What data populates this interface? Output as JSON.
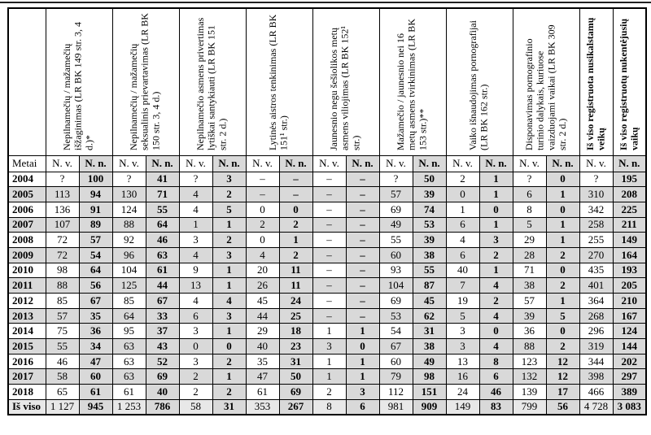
{
  "page": {
    "top_rule_color": "#222222"
  },
  "table": {
    "colors": {
      "row_shade": "#d9d9d9",
      "total_shade": "#e8e8e8",
      "border": "#000000"
    },
    "year_col_label": "Metai",
    "sub_nv": "N. v.",
    "sub_nn": "N. n.",
    "columns": [
      {
        "label": "Nepilnamečių / mažamečių išžaginimas (LR BK 149 str. 3, 4 d.)*"
      },
      {
        "label": "Nepilnamečių / mažamečių seksualinis prievartavimas (LR BK 150 str. 3, 4 d.)"
      },
      {
        "label": "Nepilnamečio asmens privertimas lytiškai santykiauti (LR BK 151 str. 2 d.)"
      },
      {
        "label": "Lytinės aistros tenkinimas (LR BK 151¹ str.)"
      },
      {
        "label": "Jaunesnio negu šešiolikos metų asmens viliojimas (LR BK 152¹ str.)"
      },
      {
        "label": "Mažamečio / jaunesnio nei 16 metų asmens tvirkinimas (LR BK 153 str.)**"
      },
      {
        "label": "Vaiko išnaudojimas pornografijai (LR BK 162 str.)"
      },
      {
        "label": "Disponavimas pornografinio turinio dalykais, kuriuose vaizduojami vaikai (LR BK 309 str. 2 d.)"
      },
      {
        "label": "Iš viso registruota nusikalstamų veikų"
      },
      {
        "label": "Iš viso registruotų nukentėjusių vaikų"
      }
    ],
    "rows": [
      {
        "year": "2004",
        "values": [
          "?",
          "100",
          "?",
          "41",
          "?",
          "3",
          "–",
          "–",
          "–",
          "–",
          "?",
          "50",
          "2",
          "1",
          "?",
          "0",
          "?",
          "195"
        ]
      },
      {
        "year": "2005",
        "values": [
          "113",
          "94",
          "130",
          "71",
          "4",
          "2",
          "–",
          "–",
          "–",
          "–",
          "57",
          "39",
          "0",
          "1",
          "6",
          "1",
          "310",
          "208"
        ]
      },
      {
        "year": "2006",
        "values": [
          "136",
          "91",
          "124",
          "55",
          "4",
          "5",
          "0",
          "0",
          "–",
          "–",
          "69",
          "74",
          "1",
          "0",
          "8",
          "0",
          "342",
          "225"
        ]
      },
      {
        "year": "2007",
        "values": [
          "107",
          "89",
          "88",
          "64",
          "1",
          "1",
          "2",
          "2",
          "–",
          "–",
          "49",
          "53",
          "6",
          "1",
          "5",
          "1",
          "258",
          "211"
        ]
      },
      {
        "year": "2008",
        "values": [
          "72",
          "57",
          "92",
          "46",
          "3",
          "2",
          "0",
          "1",
          "–",
          "–",
          "55",
          "39",
          "4",
          "3",
          "29",
          "1",
          "255",
          "149"
        ]
      },
      {
        "year": "2009",
        "values": [
          "72",
          "54",
          "96",
          "63",
          "4",
          "3",
          "4",
          "2",
          "–",
          "–",
          "60",
          "38",
          "6",
          "2",
          "28",
          "2",
          "270",
          "164"
        ]
      },
      {
        "year": "2010",
        "values": [
          "98",
          "64",
          "104",
          "61",
          "9",
          "1",
          "20",
          "11",
          "–",
          "–",
          "93",
          "55",
          "40",
          "1",
          "71",
          "0",
          "435",
          "193"
        ]
      },
      {
        "year": "2011",
        "values": [
          "88",
          "56",
          "125",
          "44",
          "13",
          "1",
          "26",
          "11",
          "–",
          "–",
          "104",
          "87",
          "7",
          "4",
          "38",
          "2",
          "401",
          "205"
        ]
      },
      {
        "year": "2012",
        "values": [
          "85",
          "67",
          "85",
          "67",
          "4",
          "4",
          "45",
          "24",
          "–",
          "–",
          "69",
          "45",
          "19",
          "2",
          "57",
          "1",
          "364",
          "210"
        ]
      },
      {
        "year": "2013",
        "values": [
          "57",
          "35",
          "64",
          "33",
          "6",
          "3",
          "44",
          "25",
          "–",
          "–",
          "53",
          "62",
          "5",
          "4",
          "39",
          "5",
          "268",
          "167"
        ]
      },
      {
        "year": "2014",
        "values": [
          "75",
          "36",
          "95",
          "37",
          "3",
          "1",
          "29",
          "18",
          "1",
          "1",
          "54",
          "31",
          "3",
          "0",
          "36",
          "0",
          "296",
          "124"
        ]
      },
      {
        "year": "2015",
        "values": [
          "55",
          "34",
          "63",
          "43",
          "0",
          "0",
          "40",
          "23",
          "3",
          "0",
          "67",
          "38",
          "3",
          "4",
          "88",
          "2",
          "319",
          "144"
        ]
      },
      {
        "year": "2016",
        "values": [
          "46",
          "47",
          "63",
          "52",
          "3",
          "2",
          "35",
          "31",
          "1",
          "1",
          "60",
          "49",
          "13",
          "8",
          "123",
          "12",
          "344",
          "202"
        ]
      },
      {
        "year": "2017",
        "values": [
          "58",
          "60",
          "63",
          "69",
          "2",
          "1",
          "47",
          "50",
          "1",
          "1",
          "79",
          "98",
          "16",
          "6",
          "132",
          "12",
          "398",
          "297"
        ]
      },
      {
        "year": "2018",
        "values": [
          "65",
          "61",
          "61",
          "40",
          "2",
          "2",
          "61",
          "69",
          "2",
          "3",
          "112",
          "151",
          "24",
          "46",
          "139",
          "17",
          "466",
          "389"
        ]
      },
      {
        "year": "Iš viso",
        "values": [
          "1 127",
          "945",
          "1 253",
          "786",
          "58",
          "31",
          "353",
          "267",
          "8",
          "6",
          "981",
          "909",
          "149",
          "83",
          "799",
          "56",
          "4 728",
          "3 083"
        ]
      }
    ]
  }
}
